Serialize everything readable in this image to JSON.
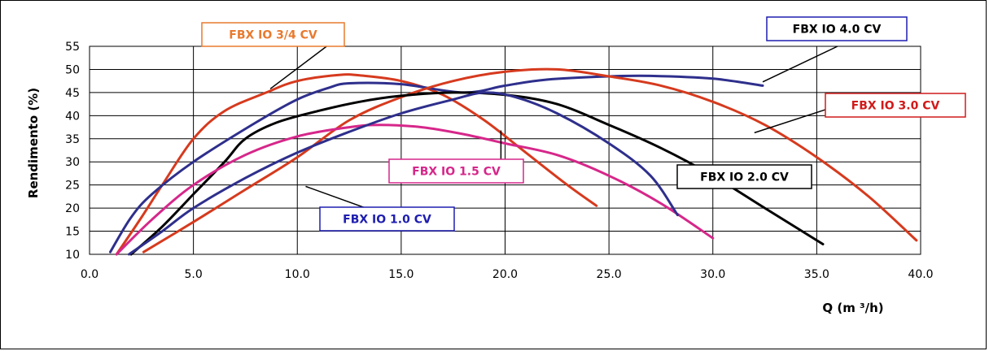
{
  "chart_data": {
    "type": "line",
    "title": "",
    "xlabel": "Q (m ³/h)",
    "ylabel": "Rendimento (%)",
    "xlim": [
      0,
      40
    ],
    "ylim": [
      10,
      55
    ],
    "x_ticks": [
      "0.0",
      "5.0",
      "10.0",
      "15.0",
      "20.0",
      "25.0",
      "30.0",
      "35.0",
      "40.0"
    ],
    "y_ticks": [
      "10",
      "15",
      "20",
      "25",
      "30",
      "35",
      "40",
      "45",
      "50",
      "55"
    ],
    "grid": true,
    "legend": "none",
    "series": [
      {
        "name": "FBX IO 3/4 CV",
        "color": "#d63a1e",
        "points": [
          [
            1.3,
            10
          ],
          [
            2.5,
            18
          ],
          [
            3.5,
            25
          ],
          [
            5,
            35
          ],
          [
            6.5,
            41
          ],
          [
            8.5,
            45
          ],
          [
            10,
            47.5
          ],
          [
            12,
            48.8
          ],
          [
            13,
            48.7
          ],
          [
            15,
            47.5
          ],
          [
            17,
            44.5
          ],
          [
            19,
            39
          ],
          [
            21,
            32
          ],
          [
            23,
            25
          ],
          [
            24.4,
            20.5
          ]
        ]
      },
      {
        "name": "FBX IO 4.0 CV",
        "color": "#2e2f8c",
        "points": [
          [
            1,
            10.5
          ],
          [
            2,
            18
          ],
          [
            3,
            23
          ],
          [
            5,
            30
          ],
          [
            8,
            38.5
          ],
          [
            10,
            43.5
          ],
          [
            11.5,
            46
          ],
          [
            12.5,
            47
          ],
          [
            15,
            46.8
          ],
          [
            18,
            45
          ],
          [
            20,
            46.5
          ],
          [
            22,
            47.8
          ],
          [
            25,
            48.5
          ],
          [
            27,
            48.6
          ],
          [
            30,
            48
          ],
          [
            32.4,
            46.5
          ]
        ]
      },
      {
        "name": "FBX IO 3.0 CV",
        "color": "#d63a1e",
        "points": [
          [
            2.6,
            10.5
          ],
          [
            5,
            17
          ],
          [
            7.5,
            24
          ],
          [
            10,
            31
          ],
          [
            12.5,
            39
          ],
          [
            15,
            44
          ],
          [
            17.5,
            47.5
          ],
          [
            20,
            49.5
          ],
          [
            22.5,
            50
          ],
          [
            25,
            48.5
          ],
          [
            27.5,
            46.5
          ],
          [
            30,
            43
          ],
          [
            32.5,
            38
          ],
          [
            35,
            31
          ],
          [
            37.5,
            22.5
          ],
          [
            39.8,
            13
          ]
        ]
      },
      {
        "name": "FBX IO 2.0 CV",
        "color": "#000000",
        "points": [
          [
            2,
            10
          ],
          [
            3.5,
            16
          ],
          [
            5,
            23
          ],
          [
            6.5,
            30
          ],
          [
            7.5,
            35
          ],
          [
            9,
            38.5
          ],
          [
            11,
            41
          ],
          [
            13,
            43
          ],
          [
            15,
            44.3
          ],
          [
            17.5,
            45
          ],
          [
            20,
            44.5
          ],
          [
            22.5,
            42.5
          ],
          [
            25,
            38
          ],
          [
            27.5,
            33
          ],
          [
            30,
            27
          ],
          [
            32.5,
            20
          ],
          [
            35.3,
            12.2
          ]
        ]
      },
      {
        "name": "FBX IO 1.5 CV",
        "color": "#d6278a",
        "points": [
          [
            1.3,
            10
          ],
          [
            3,
            17.5
          ],
          [
            5,
            25
          ],
          [
            7.5,
            31.5
          ],
          [
            10,
            35.5
          ],
          [
            12.5,
            37.5
          ],
          [
            14,
            38
          ],
          [
            16,
            37.5
          ],
          [
            18,
            36
          ],
          [
            20,
            34
          ],
          [
            22.5,
            31.5
          ],
          [
            25,
            27
          ],
          [
            27.5,
            21
          ],
          [
            30,
            13.5
          ]
        ]
      },
      {
        "name": "FBX IO 1.0 CV",
        "color": "#2e2f8c",
        "points": [
          [
            1.9,
            10
          ],
          [
            3.5,
            15
          ],
          [
            5,
            20
          ],
          [
            7.5,
            26.5
          ],
          [
            10,
            32
          ],
          [
            12.5,
            36.5
          ],
          [
            15,
            40.5
          ],
          [
            17.5,
            43.5
          ],
          [
            19,
            45
          ],
          [
            20.5,
            44
          ],
          [
            22.5,
            40.5
          ],
          [
            25,
            34
          ],
          [
            27,
            27
          ],
          [
            28.3,
            18.5
          ]
        ]
      }
    ],
    "annotations": [
      {
        "text": "FBX IO 3/4 CV",
        "color": "#e87a2f",
        "box_color": "#e87a2f",
        "pointer": [
          [
            8.7,
            45.8
          ],
          [
            12,
            57
          ]
        ]
      },
      {
        "text": "FBX IO 4.0 CV",
        "color": "#000000",
        "box_color": "#1e1eb0",
        "pointer": [
          [
            32.4,
            47.3
          ],
          [
            36,
            55
          ]
        ]
      },
      {
        "text": "FBX IO 3.0 CV",
        "color": "#d11a1a",
        "box_color": "#d11a1a",
        "pointer": [
          [
            32,
            36.3
          ],
          [
            35.9,
            42
          ]
        ]
      },
      {
        "text": "FBX IO 2.0 CV",
        "color": "#000000",
        "box_color": "#000000",
        "pointer": null
      },
      {
        "text": "FBX IO 1.5 CV",
        "color": "#d6278a",
        "box_color": "#d6278a",
        "pointer": [
          [
            19.8,
            29.3
          ],
          [
            19.8,
            36.8
          ]
        ]
      },
      {
        "text": "FBX IO 1.0 CV",
        "color": "#1e1eb0",
        "box_color": "#1e1eb0",
        "pointer": [
          [
            13.3,
            20
          ],
          [
            10.4,
            24.7
          ]
        ]
      }
    ]
  }
}
